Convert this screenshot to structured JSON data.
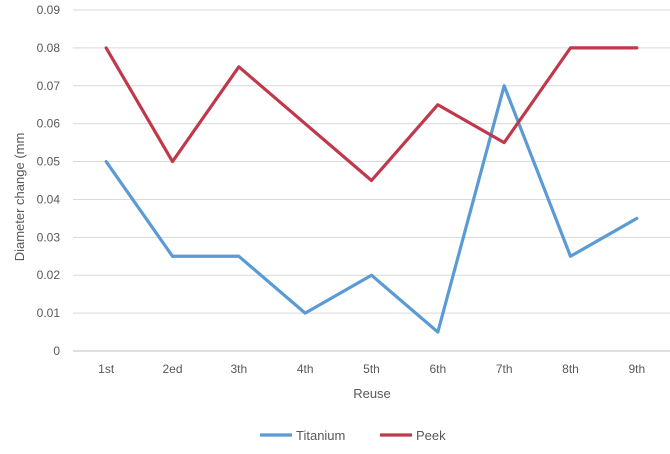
{
  "chart_data": {
    "type": "line",
    "categories": [
      "1st",
      "2ed",
      "3th",
      "4th",
      "5th",
      "6th",
      "7th",
      "8th",
      "9th"
    ],
    "series": [
      {
        "name": "Titanium",
        "color": "#5b9bd5",
        "values": [
          0.05,
          0.025,
          0.025,
          0.01,
          0.02,
          0.005,
          0.07,
          0.025,
          0.035
        ]
      },
      {
        "name": "Peek",
        "color": "#c0394b",
        "values": [
          0.08,
          0.05,
          0.075,
          0.06,
          0.045,
          0.065,
          0.055,
          0.08,
          0.08
        ]
      }
    ],
    "xlabel": "Reuse",
    "ylabel": "Diameter change (mm",
    "ylim": [
      0,
      0.09
    ],
    "yticks": [
      "0",
      "0.01",
      "0.02",
      "0.03",
      "0.04",
      "0.05",
      "0.06",
      "0.07",
      "0.08",
      "0.09"
    ],
    "grid": true,
    "legend_position": "bottom"
  }
}
